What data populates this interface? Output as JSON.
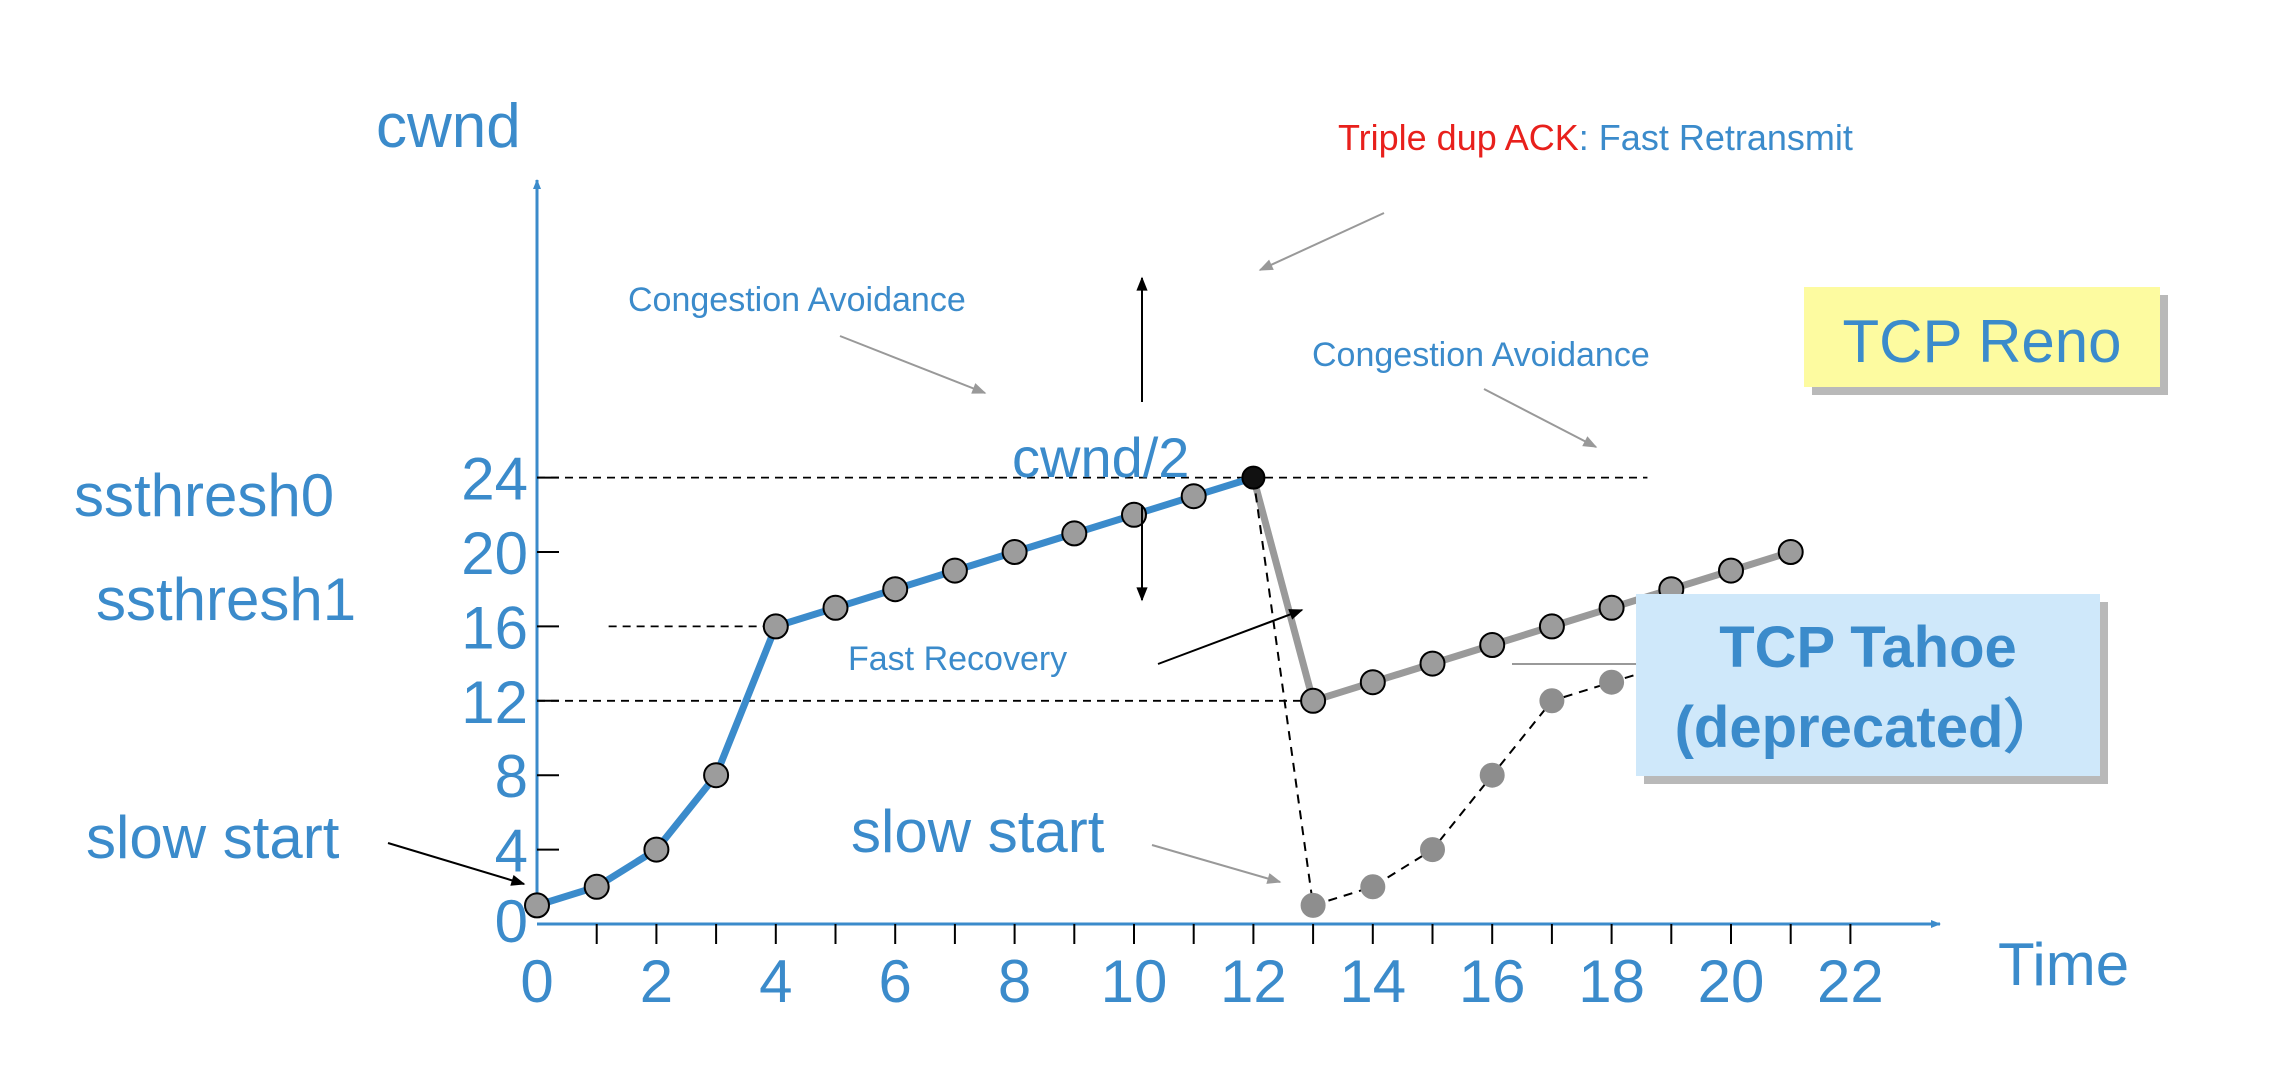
{
  "chart_data": {
    "type": "line",
    "title": "",
    "xlabel": "Time",
    "ylabel": "cwnd",
    "xlim": [
      0,
      23
    ],
    "ylim": [
      0,
      26
    ],
    "x_ticks": [
      0,
      2,
      4,
      6,
      8,
      10,
      12,
      14,
      16,
      18,
      20,
      22
    ],
    "y_ticks": [
      0,
      4,
      8,
      12,
      16,
      20,
      24
    ],
    "grid": false,
    "series": [
      {
        "name": "",
        "style": "solid",
        "color": "#3b8bcb",
        "points": [
          [
            0,
            1
          ],
          [
            1,
            2
          ],
          [
            2,
            4
          ],
          [
            3,
            8
          ],
          [
            4,
            16
          ],
          [
            5,
            17
          ],
          [
            6,
            18
          ],
          [
            7,
            19
          ],
          [
            8,
            20
          ],
          [
            9,
            21
          ],
          [
            10,
            22
          ],
          [
            11,
            23
          ],
          [
            12,
            24
          ]
        ]
      },
      {
        "name": "TCP Reno",
        "style": "solid",
        "color": "#9a9a9a",
        "points": [
          [
            12,
            24
          ],
          [
            13,
            12
          ],
          [
            14,
            13
          ],
          [
            15,
            14
          ],
          [
            16,
            15
          ],
          [
            17,
            16
          ],
          [
            18,
            17
          ],
          [
            19,
            18
          ],
          [
            20,
            19
          ],
          [
            21,
            20
          ]
        ]
      },
      {
        "name": "TCP Tahoe (deprecated)",
        "style": "dashed",
        "color": "#000000",
        "points": [
          [
            12,
            24
          ],
          [
            13,
            1
          ],
          [
            14,
            2
          ],
          [
            15,
            4
          ],
          [
            16,
            8
          ],
          [
            17,
            12
          ],
          [
            18,
            13
          ],
          [
            19,
            14
          ],
          [
            20,
            15
          ],
          [
            21,
            16
          ]
        ],
        "extension": [
          21.6,
          16.8
        ]
      }
    ],
    "reference_lines": [
      {
        "y": 24,
        "from_x": 0,
        "to_x": 18.6
      },
      {
        "y": 16,
        "from_x": 1.2,
        "to_x": 4
      },
      {
        "y": 12,
        "from_x": 0,
        "to_x": 13
      }
    ],
    "side_labels": {
      "ssthresh0": "ssthresh0",
      "ssthresh1": "ssthresh1",
      "slow_start_left": "slow start"
    },
    "annotations": {
      "triple_dup_red": "Triple dup ACK",
      "triple_dup_blue": ": Fast Retransmit",
      "ca_left": "Congestion Avoidance",
      "ca_right": "Congestion Avoidance",
      "cwnd_half": "cwnd/2",
      "fast_recovery": "Fast Recovery",
      "slow_start_mid": "slow start",
      "reno_box": "TCP Reno",
      "tahoe_line1": "TCP Tahoe",
      "tahoe_line2": "(deprecated）"
    },
    "colors": {
      "accent_blue": "#3b8bcb",
      "reno_gray": "#9a9a9a",
      "red": "#e8201c",
      "reno_box_bg": "#fdfba0",
      "tahoe_box_bg": "#cfe8fa"
    }
  }
}
